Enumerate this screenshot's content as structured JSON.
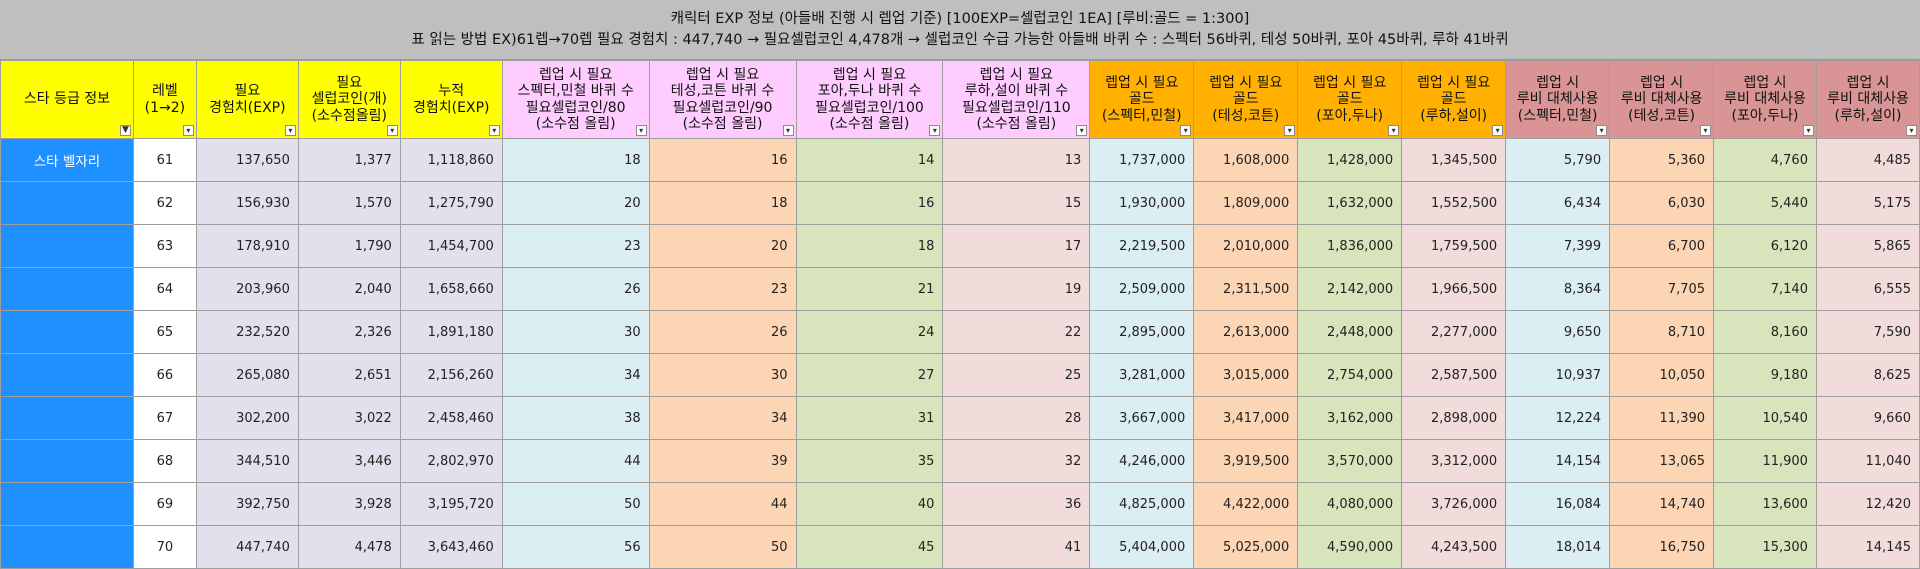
{
  "title": {
    "line1": "캐릭터 EXP 정보 (아들배 진행 시 렙업 기준) [100EXP=셀럽코인 1EA] [루비:골드 = 1:300]",
    "line2": "표 읽는 방법 EX)61렙→70렙 필요 경험치 : 447,740 → 필요셀럽코인 4,478개 → 셀럽코인 수급 가능한 아들배 바퀴 수 : 스펙터 56바퀴, 테성 50바퀴, 포아 45바퀴, 루하 41바퀴"
  },
  "filter_icons": {
    "active": "▼",
    "default": "▾"
  },
  "columns": [
    {
      "label": "스타 등급 정보",
      "filter_active": true
    },
    {
      "label": "레벨\n(1→2)"
    },
    {
      "label": "필요\n경험치(EXP)"
    },
    {
      "label": "필요\n셀럽코인(개)\n(소수점올림)"
    },
    {
      "label": "누적\n경험치(EXP)"
    },
    {
      "label": "렙업 시 필요\n스펙터,민철 바퀴 수\n필요셀럽코인/80\n(소수점 올림)"
    },
    {
      "label": "렙업 시 필요\n테성,코튼 바퀴 수\n필요셀럽코인/90\n(소수점 올림)"
    },
    {
      "label": "렙업 시 필요\n포아,두나 바퀴 수\n필요셀럽코인/100\n(소수점 올림)"
    },
    {
      "label": "렙업 시 필요\n루하,설이 바퀴 수\n필요셀럽코인/110\n(소수점 올림)"
    },
    {
      "label": "렙업 시 필요\n골드\n(스펙터,민철)"
    },
    {
      "label": "렙업 시 필요\n골드\n(테성,코튼)"
    },
    {
      "label": "렙업 시 필요\n골드\n(포아,두나)"
    },
    {
      "label": "렙업 시 필요\n골드\n(루하,설이)"
    },
    {
      "label": "렙업 시\n루비 대체사용\n(스펙터,민철)"
    },
    {
      "label": "렙업 시\n루비 대체사용\n(테성,코튼)"
    },
    {
      "label": "렙업 시\n루비 대체사용\n(포아,두나)"
    },
    {
      "label": "렙업 시\n루비 대체사용\n(루하,설이)"
    }
  ],
  "rows": [
    [
      "스타 벨자리",
      "61",
      "137,650",
      "1,377",
      "1,118,860",
      "18",
      "16",
      "14",
      "13",
      "1,737,000",
      "1,608,000",
      "1,428,000",
      "1,345,500",
      "5,790",
      "5,360",
      "4,760",
      "4,485"
    ],
    [
      "",
      "62",
      "156,930",
      "1,570",
      "1,275,790",
      "20",
      "18",
      "16",
      "15",
      "1,930,000",
      "1,809,000",
      "1,632,000",
      "1,552,500",
      "6,434",
      "6,030",
      "5,440",
      "5,175"
    ],
    [
      "",
      "63",
      "178,910",
      "1,790",
      "1,454,700",
      "23",
      "20",
      "18",
      "17",
      "2,219,500",
      "2,010,000",
      "1,836,000",
      "1,759,500",
      "7,399",
      "6,700",
      "6,120",
      "5,865"
    ],
    [
      "",
      "64",
      "203,960",
      "2,040",
      "1,658,660",
      "26",
      "23",
      "21",
      "19",
      "2,509,000",
      "2,311,500",
      "2,142,000",
      "1,966,500",
      "8,364",
      "7,705",
      "7,140",
      "6,555"
    ],
    [
      "",
      "65",
      "232,520",
      "2,326",
      "1,891,180",
      "30",
      "26",
      "24",
      "22",
      "2,895,000",
      "2,613,000",
      "2,448,000",
      "2,277,000",
      "9,650",
      "8,710",
      "8,160",
      "7,590"
    ],
    [
      "",
      "66",
      "265,080",
      "2,651",
      "2,156,260",
      "34",
      "30",
      "27",
      "25",
      "3,281,000",
      "3,015,000",
      "2,754,000",
      "2,587,500",
      "10,937",
      "10,050",
      "9,180",
      "8,625"
    ],
    [
      "",
      "67",
      "302,200",
      "3,022",
      "2,458,460",
      "38",
      "34",
      "31",
      "28",
      "3,667,000",
      "3,417,000",
      "3,162,000",
      "2,898,000",
      "12,224",
      "11,390",
      "10,540",
      "9,660"
    ],
    [
      "",
      "68",
      "344,510",
      "3,446",
      "2,802,970",
      "44",
      "39",
      "35",
      "32",
      "4,246,000",
      "3,919,500",
      "3,570,000",
      "3,312,000",
      "14,154",
      "13,065",
      "11,900",
      "11,040"
    ],
    [
      "",
      "69",
      "392,750",
      "3,928",
      "3,195,720",
      "50",
      "44",
      "40",
      "36",
      "4,825,000",
      "4,422,000",
      "4,080,000",
      "3,726,000",
      "16,084",
      "14,740",
      "13,600",
      "12,420"
    ],
    [
      "",
      "70",
      "447,740",
      "4,478",
      "3,643,460",
      "56",
      "50",
      "45",
      "41",
      "5,404,000",
      "5,025,000",
      "4,590,000",
      "4,243,500",
      "18,014",
      "16,750",
      "15,300",
      "14,145"
    ]
  ]
}
